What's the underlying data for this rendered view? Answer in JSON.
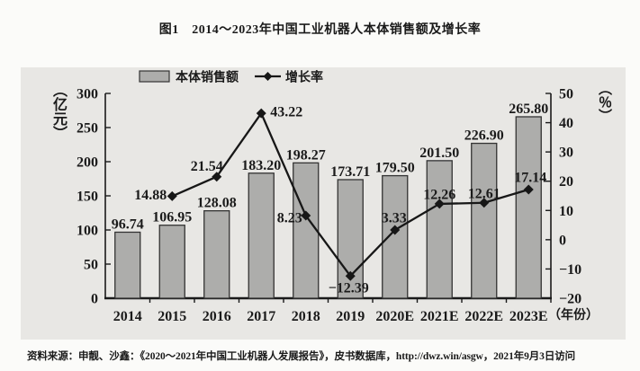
{
  "figure": {
    "title": "图1　2014～2023年中国工业机器人本体销售额及增长率"
  },
  "source": {
    "text": "资料来源：申靓、沙鑫：《2020～2021年中国工业机器人发展报告》，皮书数据库，http://dwz.win/asgw，2021年9月3日访问"
  },
  "chart_data": {
    "type": "bar",
    "title": "图1　2014～2023年中国工业机器人本体销售额及增长率",
    "categories": [
      "2014",
      "2015",
      "2016",
      "2017",
      "2018",
      "2019",
      "2020E",
      "2021E",
      "2022E",
      "2023E"
    ],
    "series": [
      {
        "name": "本体销售额",
        "type": "bar",
        "axis": "left",
        "unit": "亿元",
        "values": [
          96.74,
          106.95,
          128.08,
          183.2,
          198.27,
          173.71,
          179.5,
          201.5,
          226.9,
          265.8
        ]
      },
      {
        "name": "增长率",
        "type": "line",
        "axis": "right",
        "unit": "%",
        "values": [
          null,
          14.88,
          21.54,
          43.22,
          8.23,
          -12.39,
          3.33,
          12.26,
          12.61,
          17.14
        ]
      }
    ],
    "left_axis": {
      "label": "（亿元）",
      "min": 0,
      "max": 300,
      "ticks": [
        0,
        50,
        100,
        150,
        200,
        250,
        300
      ]
    },
    "right_axis": {
      "label": "（％）",
      "min": -20,
      "max": 50,
      "ticks": [
        -20,
        -10,
        0,
        10,
        20,
        30,
        40,
        50
      ]
    },
    "x_axis": {
      "label": "（年份）"
    },
    "legend": {
      "position": "top",
      "items": [
        "本体销售额",
        "增长率"
      ]
    },
    "grid": false,
    "colors": {
      "bar_fill": "#adadab",
      "bar_stroke": "#333333",
      "line": "#171717",
      "text": "#1a1a1a",
      "panel_bg": "#e8e7e4"
    },
    "growth_label_offsets": [
      null,
      [
        -24,
        -2
      ],
      [
        -11,
        -12
      ],
      [
        28,
        -2
      ],
      [
        -18,
        2
      ],
      [
        -2,
        13
      ],
      [
        -1,
        -14
      ],
      [
        0,
        -11
      ],
      [
        0,
        -11
      ],
      [
        2,
        -14
      ]
    ]
  }
}
